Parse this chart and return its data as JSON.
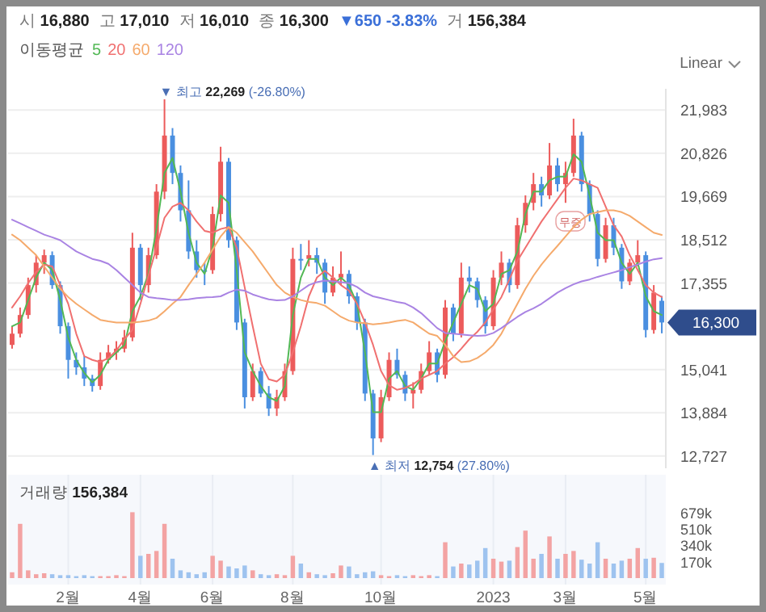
{
  "chart_data": [
    {
      "type": "candlestick",
      "legend_title": "이동평균",
      "legend": "top left",
      "grid": "y",
      "tick_labels": "y",
      "annotations": [
        "시 **16,880**",
        "고 **17,010**",
        "저 **16,010**",
        "종 **16,300**",
        "▼650 -3.83%",
        "거 **156,384**",
        "Linear",
        "▼ 최고 **22,269** (-26.80%)",
        "▲ 최저 **12,754** (27.80%)",
        "무증",
        "16,300"
      ],
      "categories": [
        null,
        null,
        null,
        null,
        null,
        null,
        null,
        null,
        null,
        null,
        null,
        null,
        null,
        null,
        null,
        null,
        null,
        null,
        null,
        null,
        null,
        null,
        null,
        null,
        null,
        null,
        null,
        null,
        null,
        null,
        null,
        null,
        null,
        null,
        null,
        null,
        null,
        null,
        null,
        null,
        null,
        null,
        null,
        null,
        null,
        null,
        null,
        null,
        null,
        null,
        null,
        null,
        null,
        null,
        null,
        null,
        null,
        null,
        null,
        null,
        null,
        null,
        null,
        null,
        null,
        null,
        null,
        null,
        null,
        null,
        null,
        null,
        null,
        null,
        null,
        null,
        null,
        null,
        null,
        null,
        null,
        null
      ],
      "ylim": [
        12400,
        22550
      ],
      "yticks": [
        {
          "value": 12727,
          "label": "12,727"
        },
        {
          "value": 13884,
          "label": "13,884"
        },
        {
          "value": 15041,
          "label": "15,041"
        },
        {
          "value": 17355,
          "label": "17,355"
        },
        {
          "value": 18512,
          "label": "18,512"
        },
        {
          "value": 19669,
          "label": "19,669"
        },
        {
          "value": 20826,
          "label": "20,826"
        },
        {
          "value": 21983,
          "label": "21,983"
        }
      ],
      "ohlc": [
        [
          15700,
          16200,
          15600,
          16000
        ],
        [
          16000,
          16700,
          15900,
          16500
        ],
        [
          16500,
          17500,
          16400,
          17300
        ],
        [
          17300,
          18100,
          17100,
          17900
        ],
        [
          17900,
          18250,
          17600,
          18100
        ],
        [
          18100,
          18200,
          17200,
          17300
        ],
        [
          17300,
          17400,
          16000,
          16200
        ],
        [
          16200,
          16300,
          14800,
          15300
        ],
        [
          15300,
          15500,
          14900,
          15100
        ],
        [
          15100,
          15400,
          14600,
          14800
        ],
        [
          14800,
          14900,
          14450,
          14600
        ],
        [
          14600,
          15500,
          14500,
          15300
        ],
        [
          15300,
          15700,
          15200,
          15500
        ],
        [
          15500,
          15800,
          15300,
          15600
        ],
        [
          15600,
          16100,
          15500,
          15900
        ],
        [
          15900,
          18700,
          15800,
          18300
        ],
        [
          18300,
          18400,
          16900,
          17300
        ],
        [
          17300,
          18300,
          17100,
          18100
        ],
        [
          18100,
          20000,
          18000,
          19800
        ],
        [
          19800,
          22269,
          19600,
          21300
        ],
        [
          21300,
          21500,
          20000,
          20300
        ],
        [
          20300,
          20500,
          19000,
          19300
        ],
        [
          19300,
          20100,
          18000,
          18200
        ],
        [
          18200,
          18500,
          17500,
          17700
        ],
        [
          17700,
          17900,
          17300,
          17700
        ],
        [
          17700,
          19400,
          17600,
          19200
        ],
        [
          19200,
          21000,
          19000,
          20600
        ],
        [
          20600,
          20700,
          18300,
          18500
        ],
        [
          18500,
          18600,
          16100,
          16300
        ],
        [
          16300,
          16400,
          14000,
          14300
        ],
        [
          14300,
          15200,
          14200,
          15000
        ],
        [
          15000,
          15100,
          14300,
          14400
        ],
        [
          14400,
          14600,
          13800,
          14000
        ],
        [
          14000,
          14500,
          13800,
          14300
        ],
        [
          14300,
          15200,
          14200,
          15000
        ],
        [
          15000,
          18300,
          14900,
          18000
        ],
        [
          18000,
          18400,
          17700,
          18000
        ],
        [
          18000,
          18500,
          17800,
          18100
        ],
        [
          18100,
          18300,
          17600,
          17900
        ],
        [
          17900,
          18000,
          16800,
          17100
        ],
        [
          17100,
          17800,
          17000,
          17500
        ],
        [
          17500,
          18200,
          17300,
          17600
        ],
        [
          17600,
          17700,
          16800,
          17000
        ],
        [
          17000,
          17100,
          16100,
          16300
        ],
        [
          16300,
          16400,
          14200,
          14400
        ],
        [
          14400,
          14500,
          12754,
          13200
        ],
        [
          13200,
          14500,
          13100,
          14300
        ],
        [
          14300,
          15500,
          14200,
          15300
        ],
        [
          15300,
          15600,
          14800,
          14900
        ],
        [
          14900,
          15000,
          14200,
          14400
        ],
        [
          14400,
          14700,
          14000,
          14500
        ],
        [
          14500,
          15200,
          14400,
          15000
        ],
        [
          15000,
          15800,
          14900,
          15500
        ],
        [
          15500,
          15600,
          14700,
          14900
        ],
        [
          14900,
          16900,
          14800,
          16700
        ],
        [
          16700,
          16800,
          15800,
          16000
        ],
        [
          16000,
          17900,
          15900,
          17500
        ],
        [
          17500,
          17800,
          17100,
          17400
        ],
        [
          17400,
          17500,
          16700,
          16900
        ],
        [
          16900,
          17000,
          16000,
          16200
        ],
        [
          16200,
          17700,
          16100,
          17500
        ],
        [
          17500,
          18200,
          17300,
          17900
        ],
        [
          17900,
          18000,
          17100,
          17300
        ],
        [
          17300,
          19100,
          17200,
          18900
        ],
        [
          18900,
          19700,
          18700,
          19500
        ],
        [
          19500,
          20300,
          19300,
          20000
        ],
        [
          20000,
          20200,
          19400,
          19700
        ],
        [
          19700,
          21100,
          19600,
          20500
        ],
        [
          20500,
          20700,
          19800,
          20000
        ],
        [
          20000,
          20600,
          19500,
          20300
        ],
        [
          20300,
          21750,
          20200,
          21300
        ],
        [
          21300,
          21400,
          19800,
          20000
        ],
        [
          20000,
          20100,
          19000,
          19200
        ],
        [
          19200,
          19300,
          17800,
          18000
        ],
        [
          18000,
          19100,
          17900,
          18900
        ],
        [
          18900,
          19100,
          18100,
          18300
        ],
        [
          18300,
          18400,
          17200,
          17400
        ],
        [
          17400,
          18000,
          17300,
          17900
        ],
        [
          17900,
          18500,
          17800,
          18100
        ],
        [
          18100,
          18200,
          15900,
          16100
        ],
        [
          16100,
          17300,
          16000,
          17100
        ],
        [
          16880,
          17010,
          16010,
          16300
        ]
      ],
      "colors": [
        "#ec5b5b",
        "#ec5b5b",
        "#ec5b5b",
        "#ec5b5b",
        "#ec5b5b",
        "#4a8fe0",
        "#4a8fe0",
        "#4a8fe0",
        "#4a8fe0",
        "#4a8fe0",
        "#4a8fe0",
        "#ec5b5b",
        "#ec5b5b",
        "#ec5b5b",
        "#ec5b5b",
        "#ec5b5b",
        "#4a8fe0",
        "#ec5b5b",
        "#ec5b5b",
        "#ec5b5b",
        "#4a8fe0",
        "#4a8fe0",
        "#4a8fe0",
        "#4a8fe0",
        "#4a8fe0",
        "#ec5b5b",
        "#ec5b5b",
        "#4a8fe0",
        "#4a8fe0",
        "#4a8fe0",
        "#ec5b5b",
        "#4a8fe0",
        "#4a8fe0",
        "#ec5b5b",
        "#ec5b5b",
        "#ec5b5b",
        "#4a8fe0",
        "#ec5b5b",
        "#4a8fe0",
        "#4a8fe0",
        "#ec5b5b",
        "#ec5b5b",
        "#4a8fe0",
        "#4a8fe0",
        "#4a8fe0",
        "#4a8fe0",
        "#ec5b5b",
        "#ec5b5b",
        "#4a8fe0",
        "#4a8fe0",
        "#ec5b5b",
        "#ec5b5b",
        "#ec5b5b",
        "#4a8fe0",
        "#ec5b5b",
        "#4a8fe0",
        "#ec5b5b",
        "#4a8fe0",
        "#4a8fe0",
        "#4a8fe0",
        "#ec5b5b",
        "#ec5b5b",
        "#4a8fe0",
        "#ec5b5b",
        "#ec5b5b",
        "#ec5b5b",
        "#4a8fe0",
        "#ec5b5b",
        "#4a8fe0",
        "#ec5b5b",
        "#ec5b5b",
        "#4a8fe0",
        "#4a8fe0",
        "#4a8fe0",
        "#ec5b5b",
        "#4a8fe0",
        "#4a8fe0",
        "#ec5b5b",
        "#ec5b5b",
        "#4a8fe0",
        "#ec5b5b",
        "#4a8fe0"
      ],
      "series": [
        {
          "name": "5",
          "type": "line",
          "color": "#52b855",
          "values": [
            16200,
            16300,
            16900,
            17500,
            17900,
            17700,
            16900,
            15900,
            15300,
            14950,
            14700,
            14900,
            15300,
            15500,
            15700,
            16600,
            17000,
            17600,
            18800,
            20300,
            20700,
            19800,
            18700,
            17900,
            17600,
            18300,
            19700,
            19500,
            17700,
            15500,
            15000,
            14600,
            14300,
            14200,
            14600,
            16500,
            17500,
            18000,
            18000,
            17500,
            17300,
            17500,
            17300,
            16800,
            15500,
            13900,
            13900,
            14800,
            15000,
            14600,
            14500,
            14800,
            15200,
            15200,
            15800,
            16300,
            16800,
            17300,
            17200,
            16600,
            16800,
            17600,
            17700,
            18200,
            19200,
            19800,
            19800,
            20100,
            20200,
            20200,
            20800,
            20600,
            19700,
            18700,
            18500,
            18500,
            17900,
            17600,
            17900,
            17000,
            16600,
            16500
          ]
        },
        {
          "name": "20",
          "type": "line",
          "color": "#f07070",
          "values": [
            16700,
            17000,
            17350,
            17650,
            17850,
            17800,
            17300,
            16800,
            16000,
            15400,
            15300,
            15240,
            15350,
            15550,
            15850,
            16100,
            16800,
            17550,
            18300,
            19100,
            19400,
            19500,
            19300,
            19000,
            18750,
            18700,
            18800,
            18850,
            18300,
            17240,
            16200,
            15200,
            14780,
            14720,
            14900,
            15500,
            16200,
            17000,
            17500,
            17680,
            17500,
            17300,
            17150,
            16800,
            16300,
            15700,
            15000,
            14620,
            14500,
            14550,
            14650,
            14800,
            14900,
            15000,
            15200,
            15370,
            15600,
            15850,
            16050,
            16300,
            16650,
            16980,
            17450,
            17950,
            18300,
            18650,
            19000,
            19300,
            19600,
            19900,
            20150,
            20100,
            20000,
            19900,
            19400,
            18900,
            18600,
            18100,
            17700,
            17300,
            17100,
            16980
          ]
        },
        {
          "name": "60",
          "type": "line",
          "color": "#f5aa6c",
          "values": [
            18650,
            18500,
            18300,
            18100,
            17800,
            17500,
            17200,
            16980,
            16800,
            16650,
            16500,
            16370,
            16330,
            16300,
            16300,
            16300,
            16320,
            16350,
            16420,
            16600,
            16800,
            16980,
            17300,
            17600,
            17900,
            18250,
            18600,
            18850,
            18700,
            18450,
            18200,
            17900,
            17600,
            17300,
            17100,
            16980,
            16900,
            16850,
            16820,
            16750,
            16600,
            16450,
            16350,
            16300,
            16280,
            16250,
            16270,
            16300,
            16340,
            16370,
            16300,
            16150,
            16000,
            15940,
            15700,
            15400,
            15240,
            15260,
            15350,
            15500,
            15700,
            16000,
            16400,
            16800,
            17200,
            17550,
            17850,
            18110,
            18350,
            18600,
            18850,
            19050,
            19200,
            19250,
            19300,
            19300,
            19250,
            19150,
            19000,
            18850,
            18700,
            18640
          ]
        },
        {
          "name": "120",
          "type": "line",
          "color": "#a983e3",
          "values": [
            19050,
            18950,
            18850,
            18750,
            18650,
            18580,
            18500,
            18350,
            18200,
            18100,
            18000,
            17950,
            17870,
            17700,
            17500,
            17300,
            17100,
            16980,
            16950,
            16930,
            16900,
            16900,
            16920,
            16950,
            16970,
            16980,
            17000,
            17100,
            17180,
            17150,
            17050,
            16980,
            16920,
            16890,
            16900,
            17000,
            17150,
            17300,
            17380,
            17420,
            17400,
            17380,
            17350,
            17250,
            17100,
            17000,
            16950,
            16900,
            16850,
            16810,
            16700,
            16550,
            16350,
            16150,
            16020,
            16000,
            15980,
            15960,
            15940,
            15950,
            16020,
            16150,
            16300,
            16450,
            16580,
            16680,
            16800,
            16950,
            17100,
            17220,
            17320,
            17400,
            17450,
            17520,
            17580,
            17640,
            17700,
            17780,
            17850,
            17930,
            17990,
            18020
          ]
        }
      ]
    },
    {
      "type": "bar",
      "title": "거래량 **156,384**",
      "grid": "x",
      "categories": [
        null,
        null,
        null,
        null,
        null,
        null,
        null,
        "2월",
        null,
        null,
        null,
        null,
        null,
        null,
        null,
        null,
        "4월",
        null,
        null,
        null,
        null,
        null,
        null,
        null,
        null,
        "6월",
        null,
        null,
        null,
        null,
        null,
        null,
        null,
        null,
        null,
        "8월",
        null,
        null,
        null,
        null,
        null,
        null,
        null,
        null,
        null,
        null,
        "10월",
        null,
        null,
        null,
        null,
        null,
        null,
        null,
        null,
        null,
        null,
        null,
        null,
        null,
        "2023",
        null,
        null,
        null,
        null,
        null,
        null,
        null,
        null,
        "3월",
        null,
        null,
        null,
        null,
        null,
        null,
        null,
        null,
        null,
        "5월",
        null,
        null
      ],
      "values": [
        60000,
        560000,
        80000,
        40000,
        50000,
        40000,
        30000,
        30000,
        20000,
        30000,
        20000,
        20000,
        20000,
        30000,
        20000,
        680000,
        230000,
        250000,
        280000,
        560000,
        200000,
        80000,
        60000,
        40000,
        60000,
        230000,
        180000,
        120000,
        100000,
        130000,
        80000,
        40000,
        30000,
        40000,
        30000,
        230000,
        150000,
        60000,
        40000,
        30000,
        50000,
        130000,
        120000,
        40000,
        60000,
        70000,
        30000,
        20000,
        30000,
        20000,
        30000,
        20000,
        30000,
        20000,
        370000,
        120000,
        150000,
        140000,
        180000,
        310000,
        200000,
        170000,
        180000,
        320000,
        490000,
        200000,
        250000,
        430000,
        200000,
        250000,
        280000,
        190000,
        150000,
        370000,
        200000,
        150000,
        180000,
        200000,
        310000,
        200000,
        210000,
        156384
      ],
      "colors": [
        "#f3a3a3",
        "#f3a3a3",
        "#f3a3a3",
        "#f3a3a3",
        "#f3a3a3",
        "#9ec3ef",
        "#9ec3ef",
        "#9ec3ef",
        "#9ec3ef",
        "#9ec3ef",
        "#9ec3ef",
        "#f3a3a3",
        "#f3a3a3",
        "#f3a3a3",
        "#f3a3a3",
        "#f3a3a3",
        "#9ec3ef",
        "#f3a3a3",
        "#f3a3a3",
        "#f3a3a3",
        "#9ec3ef",
        "#9ec3ef",
        "#9ec3ef",
        "#9ec3ef",
        "#9ec3ef",
        "#f3a3a3",
        "#f3a3a3",
        "#9ec3ef",
        "#9ec3ef",
        "#9ec3ef",
        "#f3a3a3",
        "#9ec3ef",
        "#9ec3ef",
        "#f3a3a3",
        "#f3a3a3",
        "#f3a3a3",
        "#9ec3ef",
        "#f3a3a3",
        "#9ec3ef",
        "#9ec3ef",
        "#f3a3a3",
        "#f3a3a3",
        "#9ec3ef",
        "#9ec3ef",
        "#9ec3ef",
        "#9ec3ef",
        "#f3a3a3",
        "#f3a3a3",
        "#9ec3ef",
        "#9ec3ef",
        "#f3a3a3",
        "#f3a3a3",
        "#f3a3a3",
        "#9ec3ef",
        "#f3a3a3",
        "#9ec3ef",
        "#f3a3a3",
        "#9ec3ef",
        "#9ec3ef",
        "#9ec3ef",
        "#f3a3a3",
        "#f3a3a3",
        "#9ec3ef",
        "#f3a3a3",
        "#f3a3a3",
        "#f3a3a3",
        "#9ec3ef",
        "#f3a3a3",
        "#9ec3ef",
        "#f3a3a3",
        "#f3a3a3",
        "#9ec3ef",
        "#9ec3ef",
        "#9ec3ef",
        "#f3a3a3",
        "#9ec3ef",
        "#9ec3ef",
        "#f3a3a3",
        "#f3a3a3",
        "#9ec3ef",
        "#f3a3a3",
        "#9ec3ef"
      ],
      "ylim": [
        0,
        1000000
      ],
      "yticks": [
        {
          "value": 170000,
          "label": "170k"
        },
        {
          "value": 340000,
          "label": "340k"
        },
        {
          "value": 510000,
          "label": "510k"
        },
        {
          "value": 679000,
          "label": "679k"
        }
      ]
    }
  ]
}
